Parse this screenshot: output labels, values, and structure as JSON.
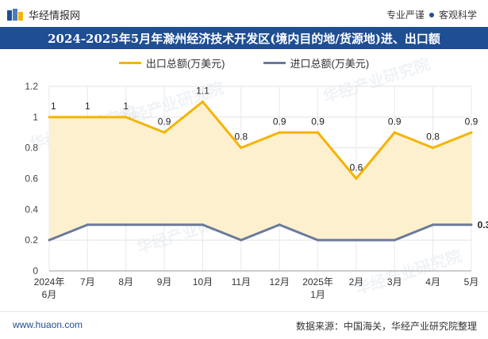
{
  "header": {
    "brand": "华经情报网",
    "tagline_left": "专业严谨",
    "tagline_right": "客观科学"
  },
  "title": "2024-2025年5月年滁州经济技术开发区(境内目的地/货源地)进、出口额",
  "footer": {
    "website": "www.huaon.com",
    "source": "数据来源：中国海关，华经产业研究院整理"
  },
  "watermark": "华经产业研究院",
  "colors": {
    "export": "#f5b400",
    "import": "#6b7a99",
    "area": "#fdf0cf",
    "titlebar": "#1f4e93"
  },
  "chart_data": {
    "type": "line",
    "categories": [
      "2024年6月",
      "7月",
      "8月",
      "9月",
      "10月",
      "11月",
      "12月",
      "2025年1月",
      "2月",
      "3月",
      "4月",
      "5月"
    ],
    "series": [
      {
        "name": "出口总额(万美元)",
        "values": [
          1,
          1,
          1,
          0.9,
          1.1,
          0.8,
          0.9,
          0.9,
          0.6,
          0.9,
          0.8,
          0.9
        ],
        "labels": [
          "1",
          "1",
          "1",
          "0.9",
          "1.1",
          "0.8",
          "0.9",
          "0.9",
          "0.6",
          "0.9",
          "0.8",
          "0.9"
        ]
      },
      {
        "name": "进口总额(万美元)",
        "values": [
          0.2,
          0.3,
          0.3,
          0.3,
          0.3,
          0.2,
          0.3,
          0.2,
          0.2,
          0.2,
          0.3,
          0.3
        ],
        "last_label": "0.3"
      }
    ],
    "ylim": [
      0,
      1.2
    ],
    "yticks": [
      0,
      0.2,
      0.4,
      0.6,
      0.8,
      1,
      1.2
    ],
    "ytick_labels": [
      "0",
      "0.2",
      "0.4",
      "0.6",
      "0.8",
      "1",
      "1.2"
    ],
    "grid": true,
    "legend": "top-center"
  }
}
